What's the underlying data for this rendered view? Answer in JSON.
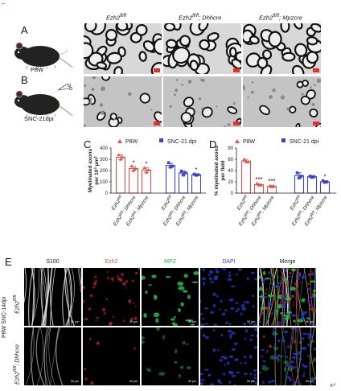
{
  "panel_labels": {
    "a": "A",
    "b": "B",
    "c": "C",
    "d": "D",
    "e": "E"
  },
  "mouse_labels": {
    "top": "P8W",
    "bottom": "SNC-21dpi"
  },
  "em_headers": [
    {
      "base": "Ezh2",
      "sup": "fl/fl",
      "suffix": ""
    },
    {
      "base": "Ezh2",
      "sup": "fl/fl",
      "suffix": "; Dhhcre"
    },
    {
      "base": "Ezh2",
      "sup": "fl/fl",
      "suffix": "; Mpzcre"
    }
  ],
  "colors": {
    "red": "#d9534a",
    "blue": "#3b45c4",
    "scalebar": "#e0322b"
  },
  "chart_data": [
    {
      "type": "bar",
      "ylabel_line1": "Myelinated axons",
      "ylabel_line2": "per 10",
      "ylabel_sup": "4",
      "ylabel_unit": " µm",
      "ylabel_unit_sup": "2",
      "ylim": [
        0,
        400
      ],
      "yticks": [
        0,
        100,
        200,
        300,
        400
      ],
      "legend": [
        {
          "label": "P8W",
          "color": "#d9534a"
        },
        {
          "label": "SNC-21 dpi",
          "color": "#3b45c4"
        }
      ],
      "categories": [
        "Ezh2fl/fl",
        "Ezh2fl/fl; Dhhcre",
        "Ezh2fl/fl; Mpzcre",
        "Ezh2fl/fl",
        "Ezh2fl/fl; Dhhcre",
        "Ezh2fl/fl; Mpzcre"
      ],
      "category_labels": [
        {
          "base": "Ezh2",
          "sup": "fl/fl",
          "suffix": ""
        },
        {
          "base": "Ezh2",
          "sup": "fl/fl",
          "suffix": "; Dhhcre"
        },
        {
          "base": "Ezh2",
          "sup": "fl/fl",
          "suffix": "; Mpzcre"
        },
        {
          "base": "Ezh2",
          "sup": "fl/fl",
          "suffix": ""
        },
        {
          "base": "Ezh2",
          "sup": "fl/fl",
          "suffix": "; Dhhcre"
        },
        {
          "base": "Ezh2",
          "sup": "fl/fl",
          "suffix": "; Mpzcre"
        }
      ],
      "series_index": [
        0,
        0,
        0,
        1,
        1,
        1
      ],
      "values": [
        318,
        218,
        205,
        245,
        178,
        163
      ],
      "errors": [
        22,
        18,
        20,
        18,
        20,
        8
      ],
      "points": [
        [
          340,
          300,
          320
        ],
        [
          240,
          200,
          215
        ],
        [
          225,
          185,
          205
        ],
        [
          270,
          230,
          240
        ],
        [
          195,
          160,
          180
        ],
        [
          168,
          158,
          163
        ]
      ],
      "significance": [
        "",
        "*",
        "*",
        "",
        "",
        "*"
      ]
    },
    {
      "type": "bar",
      "ylabel_line1": "% myelinated axons",
      "ylabel_line2": "per field",
      "ylim": [
        0,
        80
      ],
      "yticks": [
        0,
        20,
        40,
        60,
        80
      ],
      "legend": [
        {
          "label": "P8W",
          "color": "#d9534a"
        },
        {
          "label": "SNC-21 dpi",
          "color": "#3b45c4"
        }
      ],
      "categories": [
        "Ezh2fl/fl",
        "Ezh2fl/fl; Dhhcre",
        "Ezh2fl/fl; Mpzcre",
        "Ezh2fl/fl",
        "Ezh2fl/fl; Dhhcre",
        "Ezh2fl/fl; Mpzcre"
      ],
      "category_labels": [
        {
          "base": "Ezh2",
          "sup": "fl/fl",
          "suffix": ""
        },
        {
          "base": "Ezh2",
          "sup": "fl/fl",
          "suffix": "; Dhhcre"
        },
        {
          "base": "Ezh2",
          "sup": "fl/fl",
          "suffix": "; Mpzcre"
        },
        {
          "base": "Ezh2",
          "sup": "fl/fl",
          "suffix": ""
        },
        {
          "base": "Ezh2",
          "sup": "fl/fl",
          "suffix": "; Dhhcre"
        },
        {
          "base": "Ezh2",
          "sup": "fl/fl",
          "suffix": "; Mpzcre"
        }
      ],
      "series_index": [
        0,
        0,
        0,
        1,
        1,
        1
      ],
      "values": [
        57,
        15,
        12,
        31,
        29,
        20
      ],
      "errors": [
        3,
        2,
        2,
        5,
        2,
        2
      ],
      "points": [
        [
          60,
          56,
          55
        ],
        [
          17,
          14,
          14
        ],
        [
          13,
          11,
          12
        ],
        [
          36,
          27,
          30
        ],
        [
          30,
          28,
          29
        ],
        [
          22,
          19,
          20
        ]
      ],
      "significance": [
        "",
        "***",
        "***",
        "",
        "",
        "*"
      ]
    }
  ],
  "fluor_headers": [
    {
      "label": "S100",
      "color": "#222222"
    },
    {
      "label": "Ezh2",
      "color": "#d9534a"
    },
    {
      "label": "MPZ",
      "color": "#2db34a"
    },
    {
      "label": "DAPI",
      "color": "#3b45c4"
    },
    {
      "label": "Merge",
      "color": "#222222"
    }
  ],
  "fluor_row_labels": {
    "group": "P8W SNC-14dpi",
    "row1": {
      "base": "Ezh2",
      "sup": "fl/fl",
      "suffix": ""
    },
    "row2": {
      "base": "Ezh2",
      "sup": "fl/fl",
      "suffix": "; Dhhcre"
    }
  },
  "scalebar_text": "50 µm",
  "return_glyph": "↵",
  "corner_mark": "⌐"
}
